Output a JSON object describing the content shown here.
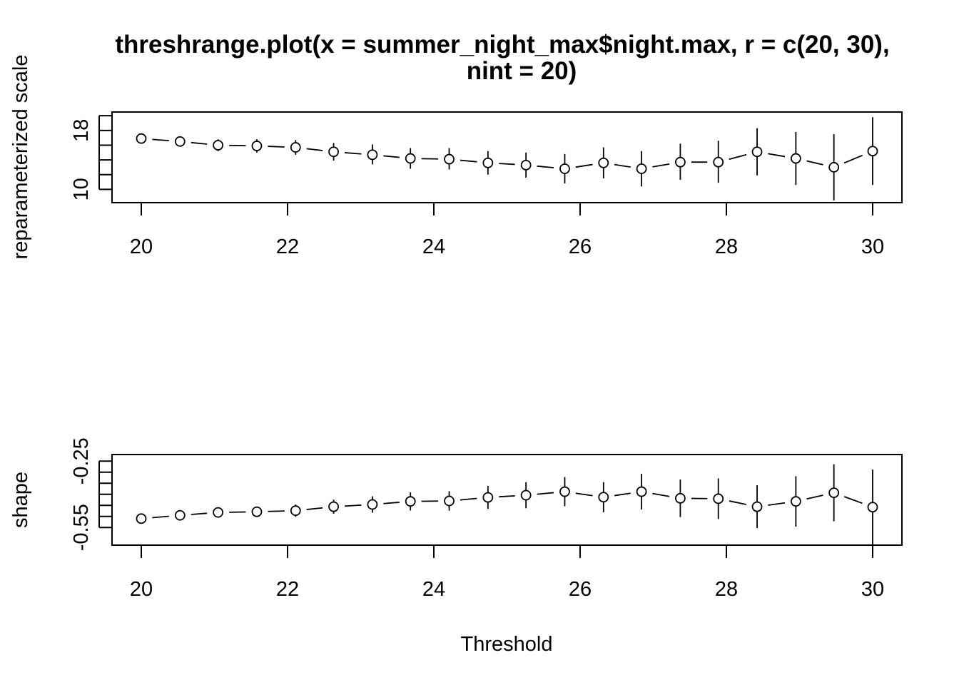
{
  "chart_data": [
    {
      "type": "scatter",
      "title_line1": "threshrange.plot(x = summer_night_max$night.max, r = c(20, 30),",
      "title_line2": "nint = 20)",
      "xlabel": "",
      "ylabel": "reparameterized scale",
      "xlim": [
        19.6,
        30.4
      ],
      "ylim": [
        8.2,
        20.5
      ],
      "x_ticks": [
        "20",
        "22",
        "24",
        "26",
        "28",
        "30"
      ],
      "y_ticks": [
        "10",
        "18"
      ],
      "y_tick_values_minor": [
        10,
        12,
        14,
        16,
        18,
        20
      ],
      "grid": false,
      "x": [
        20.0,
        20.53,
        21.05,
        21.58,
        22.11,
        22.63,
        23.16,
        23.68,
        24.21,
        24.74,
        25.26,
        25.79,
        26.32,
        26.84,
        27.37,
        27.89,
        28.42,
        28.95,
        29.47,
        30.0
      ],
      "series": [
        {
          "estimate": [
            16.9,
            16.5,
            16.0,
            15.9,
            15.7,
            15.1,
            14.7,
            14.2,
            14.1,
            13.6,
            13.3,
            12.8,
            13.6,
            12.8,
            13.7,
            13.7,
            15.1,
            14.2,
            13.0,
            15.2
          ],
          "lower": [
            16.2,
            15.8,
            15.2,
            15.0,
            14.7,
            13.9,
            13.4,
            12.8,
            12.7,
            12.0,
            11.6,
            10.8,
            11.5,
            10.4,
            11.3,
            10.9,
            11.9,
            10.6,
            8.5,
            10.6
          ],
          "upper": [
            17.5,
            17.2,
            16.8,
            16.8,
            16.7,
            16.3,
            16.1,
            15.6,
            15.6,
            15.2,
            15.0,
            14.8,
            15.7,
            15.2,
            16.2,
            16.6,
            18.3,
            17.8,
            17.5,
            19.8
          ]
        }
      ]
    },
    {
      "type": "scatter",
      "xlabel": "Threshold",
      "ylabel": "shape",
      "xlim": [
        19.6,
        30.4
      ],
      "ylim": [
        -0.63,
        -0.22
      ],
      "x_ticks": [
        "20",
        "22",
        "24",
        "26",
        "28",
        "30"
      ],
      "y_ticks": [
        "-0.55",
        "-0.25"
      ],
      "y_tick_values_minor": [
        -0.55,
        -0.5,
        -0.45,
        -0.4,
        -0.35,
        -0.3,
        -0.25
      ],
      "grid": false,
      "x": [
        20.0,
        20.53,
        21.05,
        21.58,
        22.11,
        22.63,
        23.16,
        23.68,
        24.21,
        24.74,
        25.26,
        25.79,
        26.32,
        26.84,
        27.37,
        27.89,
        28.42,
        28.95,
        29.47,
        30.0
      ],
      "series": [
        {
          "estimate": [
            -0.51,
            -0.495,
            -0.482,
            -0.479,
            -0.474,
            -0.456,
            -0.446,
            -0.432,
            -0.43,
            -0.414,
            -0.404,
            -0.388,
            -0.413,
            -0.388,
            -0.418,
            -0.42,
            -0.456,
            -0.432,
            -0.393,
            -0.458
          ],
          "lower": [
            -0.528,
            -0.516,
            -0.505,
            -0.503,
            -0.502,
            -0.488,
            -0.483,
            -0.473,
            -0.474,
            -0.466,
            -0.463,
            -0.454,
            -0.481,
            -0.469,
            -0.503,
            -0.512,
            -0.553,
            -0.546,
            -0.522,
            -0.628
          ],
          "upper": [
            -0.492,
            -0.474,
            -0.459,
            -0.455,
            -0.446,
            -0.424,
            -0.409,
            -0.391,
            -0.386,
            -0.362,
            -0.345,
            -0.322,
            -0.345,
            -0.307,
            -0.333,
            -0.328,
            -0.359,
            -0.318,
            -0.264,
            -0.288
          ]
        }
      ]
    }
  ]
}
